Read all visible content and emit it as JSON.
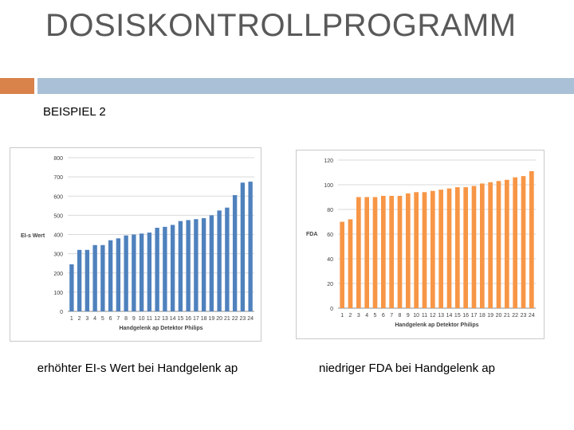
{
  "slide": {
    "title": "DOSISKONTROLLPROGRAMM",
    "subtitle": "BEISPIEL 2",
    "caption_left": "erhöhter EI-s Wert bei Handgelenk ap",
    "caption_right": "niedriger FDA bei Handgelenk ap"
  },
  "colors": {
    "accent_orange": "#d9824a",
    "accent_blue": "#a9c0d6",
    "bar_blue": "#4f81bd",
    "bar_orange": "#f79646",
    "grid": "#d9d9d9"
  },
  "chart_data": [
    {
      "type": "bar",
      "title": "",
      "xlabel": "Handgelenk ap Detektor Philips",
      "ylabel": "EI-s Wert",
      "categories": [
        "1",
        "2",
        "3",
        "4",
        "5",
        "6",
        "7",
        "8",
        "9",
        "10",
        "11",
        "12",
        "13",
        "14",
        "15",
        "16",
        "17",
        "18",
        "19",
        "20",
        "21",
        "22",
        "23",
        "24"
      ],
      "series": [
        {
          "values": [
            245,
            320,
            320,
            345,
            345,
            370,
            380,
            395,
            400,
            405,
            410,
            435,
            440,
            450,
            470,
            475,
            480,
            485,
            500,
            525,
            540,
            605,
            670,
            675
          ]
        }
      ],
      "ylim": [
        0,
        800
      ],
      "yticks": [
        0,
        100,
        200,
        300,
        400,
        500,
        600,
        700,
        800
      ],
      "grid": true,
      "color": "#4f81bd"
    },
    {
      "type": "bar",
      "title": "",
      "xlabel": "Handgelenk ap Detektor Philips",
      "ylabel": "FDA",
      "categories": [
        "1",
        "2",
        "3",
        "4",
        "5",
        "6",
        "7",
        "8",
        "9",
        "10",
        "11",
        "12",
        "13",
        "14",
        "15",
        "16",
        "17",
        "18",
        "19",
        "20",
        "21",
        "22",
        "23",
        "24"
      ],
      "series": [
        {
          "values": [
            70,
            72,
            90,
            90,
            90,
            91,
            91,
            91,
            93,
            94,
            94,
            95,
            96,
            97,
            98,
            98,
            99,
            101,
            102,
            103,
            104,
            106,
            107,
            111
          ]
        }
      ],
      "ylim": [
        0,
        120
      ],
      "yticks": [
        0,
        20,
        40,
        60,
        80,
        100,
        120
      ],
      "grid": true,
      "color": "#f79646"
    }
  ]
}
